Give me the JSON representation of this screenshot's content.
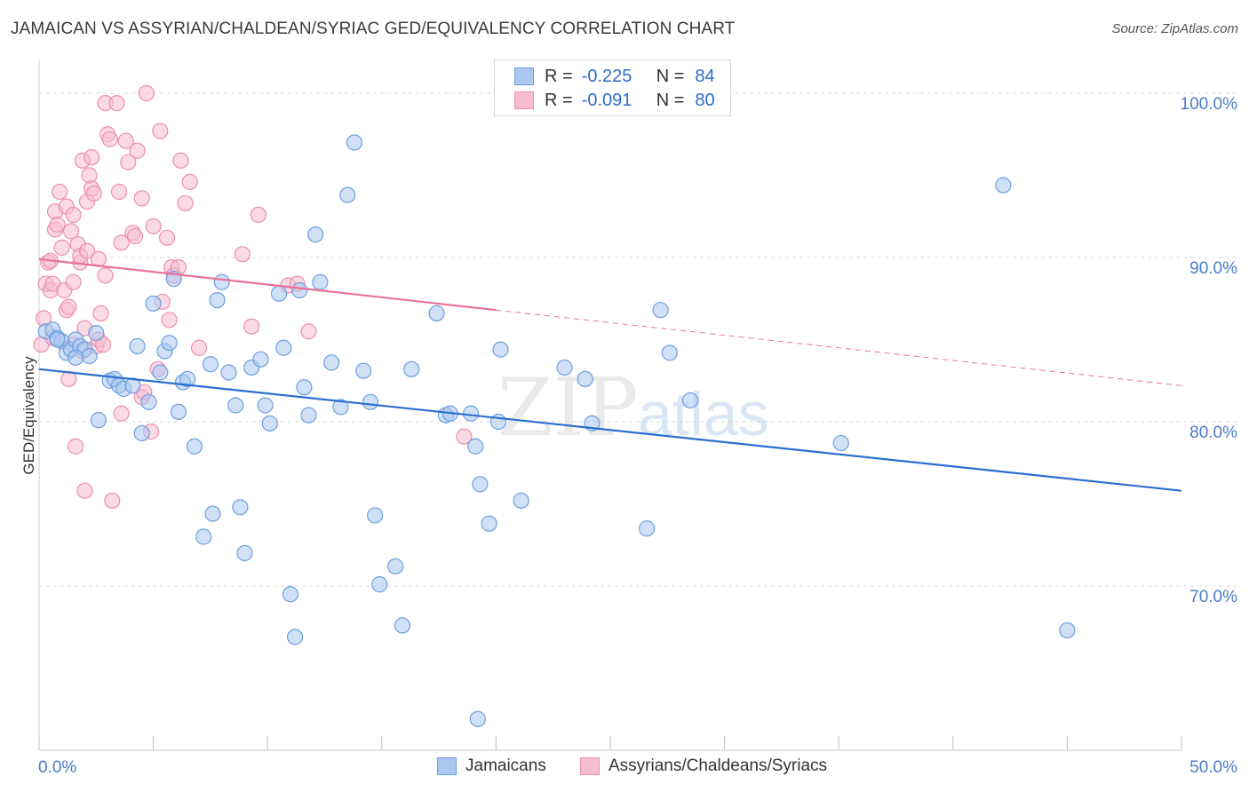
{
  "title": "JAMAICAN VS ASSYRIAN/CHALDEAN/SYRIAC GED/EQUIVALENCY CORRELATION CHART",
  "source": "Source: ZipAtlas.com",
  "watermark": {
    "zip": "ZIP",
    "atlas": "atlas"
  },
  "legend_top": [
    {
      "r_label": "R =",
      "r_value": "-0.225",
      "n_label": "N =",
      "n_value": "84"
    },
    {
      "r_label": "R =",
      "r_value": "-0.091",
      "n_label": "N =",
      "n_value": "80"
    }
  ],
  "colors": {
    "blue_fill": "#aac8f0",
    "blue_stroke": "#6e9fe0",
    "blue_line": "#2a6fcf",
    "pink_fill": "#f7bcd0",
    "pink_stroke": "#ec8fae",
    "pink_line": "#e8739a",
    "tick_text": "#4a7cc9",
    "grid": "#d9d9d9"
  },
  "chart_data": {
    "type": "scatter",
    "title": "JAMAICAN VS ASSYRIAN/CHALDEAN/SYRIAC GED/EQUIVALENCY CORRELATION CHART",
    "xlabel": "",
    "ylabel": "GED/Equivalency",
    "xlim": [
      0,
      50
    ],
    "ylim": [
      60,
      102
    ],
    "x_tick_labels": [
      "0.0%",
      "50.0%"
    ],
    "y_ticks": [
      70,
      80,
      90,
      100
    ],
    "y_tick_labels": [
      "70.0%",
      "80.0%",
      "90.0%",
      "100.0%"
    ],
    "grid": true,
    "legend_position": "bottom",
    "series": [
      {
        "name": "Jamaicans",
        "color": "blue",
        "r": -0.225,
        "n": 84,
        "trend": {
          "x0": 0,
          "y0": 83.2,
          "x1": 50,
          "y1": 75.8
        },
        "points": [
          [
            0.3,
            85.5
          ],
          [
            0.6,
            85.6
          ],
          [
            0.8,
            85.1
          ],
          [
            1.0,
            84.9
          ],
          [
            1.2,
            84.2
          ],
          [
            1.4,
            84.4
          ],
          [
            1.6,
            85.0
          ],
          [
            1.8,
            84.6
          ],
          [
            2.0,
            84.4
          ],
          [
            2.2,
            84.0
          ],
          [
            2.5,
            85.4
          ],
          [
            2.6,
            80.1
          ],
          [
            3.1,
            82.5
          ],
          [
            3.3,
            82.6
          ],
          [
            3.5,
            82.2
          ],
          [
            3.7,
            82.0
          ],
          [
            4.1,
            82.2
          ],
          [
            4.3,
            84.6
          ],
          [
            4.5,
            79.3
          ],
          [
            4.8,
            81.2
          ],
          [
            5.0,
            87.2
          ],
          [
            5.3,
            83.0
          ],
          [
            5.5,
            84.3
          ],
          [
            5.7,
            84.8
          ],
          [
            5.9,
            88.7
          ],
          [
            6.1,
            80.6
          ],
          [
            6.3,
            82.4
          ],
          [
            6.5,
            82.6
          ],
          [
            6.8,
            78.5
          ],
          [
            7.2,
            73.0
          ],
          [
            7.5,
            83.5
          ],
          [
            7.6,
            74.4
          ],
          [
            7.8,
            87.4
          ],
          [
            8.0,
            88.5
          ],
          [
            8.3,
            83.0
          ],
          [
            8.6,
            81.0
          ],
          [
            8.8,
            74.8
          ],
          [
            9.0,
            72.0
          ],
          [
            9.3,
            83.3
          ],
          [
            9.7,
            83.8
          ],
          [
            9.9,
            81.0
          ],
          [
            10.1,
            79.9
          ],
          [
            10.5,
            87.8
          ],
          [
            10.7,
            84.5
          ],
          [
            11.0,
            69.5
          ],
          [
            11.2,
            66.9
          ],
          [
            11.4,
            88.0
          ],
          [
            11.6,
            82.1
          ],
          [
            11.8,
            80.4
          ],
          [
            12.1,
            91.4
          ],
          [
            12.3,
            88.5
          ],
          [
            12.8,
            83.6
          ],
          [
            13.2,
            80.9
          ],
          [
            13.5,
            93.8
          ],
          [
            13.8,
            97.0
          ],
          [
            14.2,
            83.1
          ],
          [
            14.5,
            81.2
          ],
          [
            14.7,
            74.3
          ],
          [
            14.9,
            70.1
          ],
          [
            15.6,
            71.2
          ],
          [
            15.9,
            67.6
          ],
          [
            16.3,
            83.2
          ],
          [
            17.4,
            86.6
          ],
          [
            17.8,
            80.4
          ],
          [
            18.0,
            80.5
          ],
          [
            18.9,
            80.5
          ],
          [
            19.1,
            78.5
          ],
          [
            19.3,
            76.2
          ],
          [
            19.7,
            73.8
          ],
          [
            19.2,
            61.9
          ],
          [
            20.1,
            80.0
          ],
          [
            20.2,
            84.4
          ],
          [
            21.1,
            75.2
          ],
          [
            23.0,
            83.3
          ],
          [
            23.9,
            82.6
          ],
          [
            24.2,
            79.9
          ],
          [
            26.6,
            73.5
          ],
          [
            27.2,
            86.8
          ],
          [
            27.6,
            84.2
          ],
          [
            28.5,
            81.3
          ],
          [
            35.1,
            78.7
          ],
          [
            42.2,
            94.4
          ],
          [
            45.0,
            67.3
          ],
          [
            0.8,
            85.0
          ],
          [
            1.6,
            83.9
          ]
        ]
      },
      {
        "name": "Assyrians/Chaldeans/Syriacs",
        "color": "pink",
        "r": -0.091,
        "n": 80,
        "trend_solid": {
          "x0": 0,
          "y0": 89.9,
          "x1": 20,
          "y1": 86.8
        },
        "trend_dashed": {
          "x0": 20,
          "y0": 86.8,
          "x1": 50,
          "y1": 82.2
        },
        "points": [
          [
            0.1,
            84.7
          ],
          [
            0.2,
            86.3
          ],
          [
            0.3,
            88.4
          ],
          [
            0.4,
            89.7
          ],
          [
            0.5,
            89.8
          ],
          [
            0.5,
            88.0
          ],
          [
            0.6,
            88.4
          ],
          [
            0.6,
            85.1
          ],
          [
            0.7,
            92.8
          ],
          [
            0.7,
            91.7
          ],
          [
            0.8,
            92.0
          ],
          [
            0.9,
            94.0
          ],
          [
            1.0,
            90.6
          ],
          [
            1.1,
            88.0
          ],
          [
            1.2,
            93.1
          ],
          [
            1.2,
            86.8
          ],
          [
            1.3,
            82.6
          ],
          [
            1.3,
            87.0
          ],
          [
            1.4,
            91.6
          ],
          [
            1.5,
            92.6
          ],
          [
            1.5,
            88.5
          ],
          [
            1.5,
            84.7
          ],
          [
            1.6,
            78.5
          ],
          [
            1.7,
            90.8
          ],
          [
            1.8,
            89.7
          ],
          [
            1.8,
            90.1
          ],
          [
            1.9,
            84.3
          ],
          [
            1.9,
            95.9
          ],
          [
            2.0,
            85.7
          ],
          [
            2.0,
            75.8
          ],
          [
            2.1,
            93.4
          ],
          [
            2.1,
            90.4
          ],
          [
            2.2,
            95.0
          ],
          [
            2.3,
            94.2
          ],
          [
            2.3,
            96.1
          ],
          [
            2.4,
            93.9
          ],
          [
            2.5,
            84.6
          ],
          [
            2.6,
            89.9
          ],
          [
            2.6,
            85.0
          ],
          [
            2.7,
            86.6
          ],
          [
            2.8,
            84.7
          ],
          [
            2.9,
            99.4
          ],
          [
            2.9,
            88.9
          ],
          [
            3.0,
            97.5
          ],
          [
            3.1,
            97.2
          ],
          [
            3.2,
            75.2
          ],
          [
            3.4,
            99.4
          ],
          [
            3.5,
            94.0
          ],
          [
            3.6,
            80.5
          ],
          [
            3.6,
            90.9
          ],
          [
            3.8,
            97.1
          ],
          [
            3.9,
            95.8
          ],
          [
            4.1,
            91.5
          ],
          [
            4.2,
            91.3
          ],
          [
            4.3,
            96.5
          ],
          [
            4.5,
            81.5
          ],
          [
            4.5,
            93.6
          ],
          [
            4.6,
            81.8
          ],
          [
            4.7,
            100.0
          ],
          [
            4.9,
            79.4
          ],
          [
            5.0,
            91.9
          ],
          [
            5.2,
            83.2
          ],
          [
            5.3,
            97.7
          ],
          [
            5.4,
            87.3
          ],
          [
            5.6,
            91.2
          ],
          [
            5.7,
            86.2
          ],
          [
            5.8,
            89.4
          ],
          [
            5.9,
            88.9
          ],
          [
            6.1,
            89.4
          ],
          [
            6.2,
            95.9
          ],
          [
            6.4,
            93.3
          ],
          [
            6.6,
            94.6
          ],
          [
            7.0,
            84.5
          ],
          [
            8.9,
            90.2
          ],
          [
            9.3,
            85.8
          ],
          [
            9.6,
            92.6
          ],
          [
            10.9,
            88.3
          ],
          [
            11.3,
            88.4
          ],
          [
            11.8,
            85.5
          ],
          [
            18.6,
            79.1
          ]
        ]
      }
    ]
  }
}
